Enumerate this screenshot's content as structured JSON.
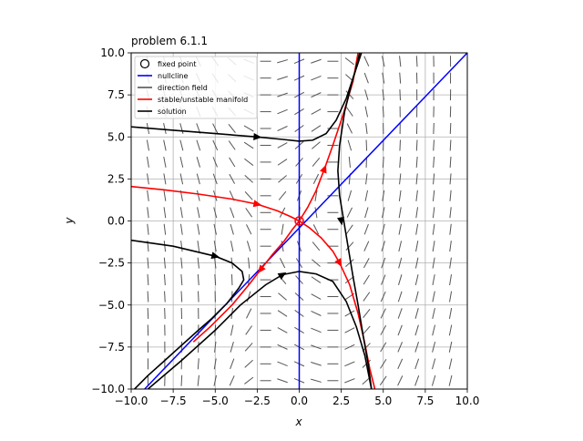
{
  "chart_data": {
    "type": "line",
    "title": "problem 6.1.1",
    "xlabel": "x",
    "ylabel": "y",
    "xlim": [
      -10,
      10
    ],
    "ylim": [
      -10,
      10
    ],
    "grid": true,
    "legend_placement": "top-left",
    "x_ticks": [
      -10,
      -7.5,
      -5,
      -2.5,
      0,
      2.5,
      5,
      7.5,
      10
    ],
    "y_ticks": [
      -10,
      -7.5,
      -5,
      -2.5,
      0,
      2.5,
      5,
      7.5,
      10
    ],
    "x_tick_labels": [
      "−10.0",
      "−7.5",
      "−5.0",
      "−2.5",
      "0.0",
      "2.5",
      "5.0",
      "7.5",
      "10.0"
    ],
    "y_tick_labels": [
      "−10.0",
      "−7.5",
      "−5.0",
      "−2.5",
      "0.0",
      "2.5",
      "5.0",
      "7.5",
      "10.0"
    ],
    "legend": [
      {
        "label": "fixed point",
        "kind": "circle",
        "color": "#000000"
      },
      {
        "label": "nullcline",
        "kind": "line",
        "color": "#0000ff"
      },
      {
        "label": "direction field",
        "kind": "line",
        "color": "#555555"
      },
      {
        "label": "stable/unstable manifold",
        "kind": "line",
        "color": "#ff0000"
      },
      {
        "label": "solution",
        "kind": "line",
        "color": "#000000"
      }
    ],
    "fixed_points": [
      {
        "x": 0,
        "y": 0
      }
    ],
    "nullclines": [
      {
        "name": "x-nullcline",
        "points": [
          [
            0,
            -10
          ],
          [
            0,
            10
          ]
        ]
      },
      {
        "name": "y-nullcline",
        "points": [
          [
            -9.2,
            -10
          ],
          [
            10,
            10
          ]
        ]
      }
    ],
    "manifolds": [
      {
        "name": "unstable-branch-upper",
        "points": [
          [
            0,
            0
          ],
          [
            0.5,
            0.8
          ],
          [
            1.0,
            1.8
          ],
          [
            1.5,
            3.1
          ],
          [
            2.0,
            4.5
          ],
          [
            2.6,
            6.3
          ],
          [
            3.2,
            8.3
          ],
          [
            3.5,
            10
          ]
        ],
        "arrow_at": [
          1.5,
          3.1
        ]
      },
      {
        "name": "unstable-branch-lower",
        "points": [
          [
            0,
            0
          ],
          [
            -0.4,
            -0.5
          ],
          [
            -0.9,
            -1.2
          ],
          [
            -1.6,
            -2.0
          ],
          [
            -2.3,
            -2.9
          ],
          [
            -3.0,
            -3.8
          ],
          [
            -4.0,
            -5.0
          ],
          [
            -5.3,
            -6.3
          ],
          [
            -6.3,
            -7.2
          ]
        ],
        "arrow_at": [
          -2.3,
          -2.9
        ]
      },
      {
        "name": "stable-branch-left",
        "points": [
          [
            -10,
            2.05
          ],
          [
            -8,
            1.85
          ],
          [
            -6,
            1.6
          ],
          [
            -4,
            1.3
          ],
          [
            -2.5,
            1.0
          ],
          [
            -1.3,
            0.6
          ],
          [
            -0.5,
            0.25
          ],
          [
            0,
            0
          ]
        ],
        "arrow_at": [
          -2.5,
          1.0
        ]
      },
      {
        "name": "stable-branch-right",
        "points": [
          [
            0,
            0
          ],
          [
            0.6,
            -0.4
          ],
          [
            1.3,
            -1.0
          ],
          [
            2.0,
            -1.8
          ],
          [
            2.4,
            -2.5
          ],
          [
            3.0,
            -3.8
          ],
          [
            3.5,
            -5.5
          ],
          [
            3.9,
            -7.3
          ],
          [
            4.2,
            -8.8
          ],
          [
            4.5,
            -10
          ]
        ],
        "arrow_at": [
          2.4,
          -2.5
        ]
      }
    ],
    "solutions": [
      {
        "name": "solution-top",
        "points": [
          [
            -10,
            5.6
          ],
          [
            -7.5,
            5.4
          ],
          [
            -5,
            5.2
          ],
          [
            -2.5,
            5.0
          ],
          [
            -1,
            4.85
          ],
          [
            0,
            4.75
          ],
          [
            0.8,
            4.8
          ],
          [
            1.6,
            5.2
          ],
          [
            2.2,
            6.0
          ],
          [
            2.8,
            7.3
          ],
          [
            3.3,
            8.8
          ],
          [
            3.6,
            10
          ]
        ],
        "arrow_at": [
          -2.5,
          5.0
        ]
      },
      {
        "name": "solution-right",
        "points": [
          [
            3.7,
            10
          ],
          [
            3.2,
            8.5
          ],
          [
            2.7,
            6.5
          ],
          [
            2.4,
            4.5
          ],
          [
            2.3,
            3.0
          ],
          [
            2.4,
            1.5
          ],
          [
            2.6,
            0.3
          ],
          [
            2.9,
            -1.5
          ],
          [
            3.2,
            -3.3
          ],
          [
            3.5,
            -5.0
          ],
          [
            3.8,
            -6.8
          ],
          [
            4.1,
            -8.5
          ],
          [
            4.3,
            -10
          ]
        ],
        "arrow_at": [
          2.5,
          0.0
        ]
      },
      {
        "name": "solution-left",
        "points": [
          [
            -10,
            -1.15
          ],
          [
            -7.5,
            -1.5
          ],
          [
            -5,
            -2.1
          ],
          [
            -4,
            -2.5
          ],
          [
            -3.4,
            -3.0
          ],
          [
            -3.3,
            -3.5
          ],
          [
            -3.6,
            -4.0
          ],
          [
            -4.3,
            -4.9
          ],
          [
            -5.2,
            -5.8
          ],
          [
            -6,
            -6.5
          ],
          [
            -7,
            -7.4
          ],
          [
            -8,
            -8.3
          ],
          [
            -9,
            -9.2
          ],
          [
            -9.8,
            -10
          ]
        ],
        "arrow_at": [
          -5.0,
          -2.1
        ]
      },
      {
        "name": "solution-bottom",
        "points": [
          [
            -9.0,
            -10
          ],
          [
            -7.0,
            -8.3
          ],
          [
            -5.0,
            -6.5
          ],
          [
            -3.5,
            -5.0
          ],
          [
            -2.0,
            -3.8
          ],
          [
            -1.0,
            -3.2
          ],
          [
            0,
            -3.0
          ],
          [
            1.0,
            -3.15
          ],
          [
            2.0,
            -3.6
          ],
          [
            2.8,
            -4.8
          ],
          [
            3.4,
            -6.3
          ],
          [
            3.9,
            -8.0
          ],
          [
            4.3,
            -10
          ]
        ],
        "arrow_at": [
          -1.0,
          -3.2
        ]
      }
    ],
    "direction_field": {
      "x_start": -9,
      "x_step": 1,
      "y_start": -9.5,
      "y_step": 1,
      "count_x": 19,
      "count_y": 20
    }
  }
}
